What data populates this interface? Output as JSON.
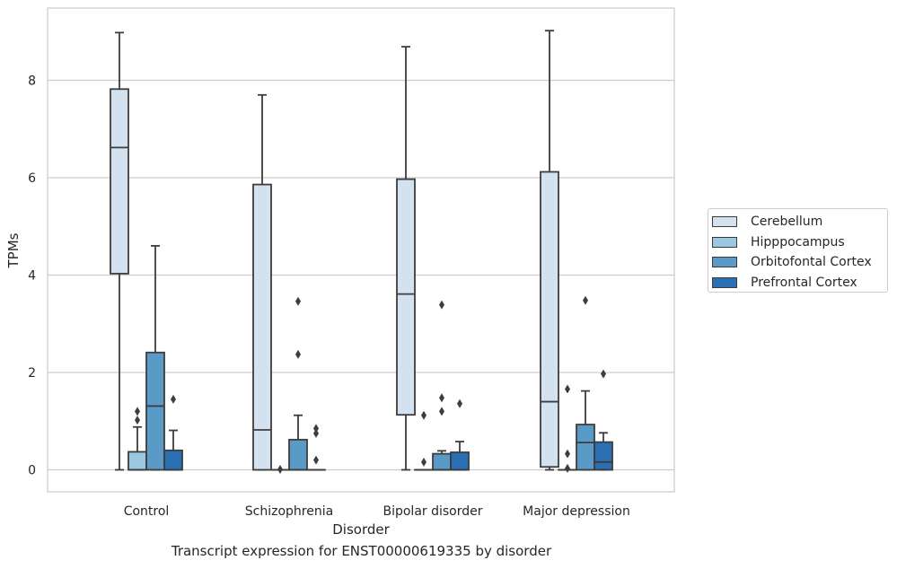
{
  "chart_data": {
    "type": "box",
    "title": "",
    "caption": "Transcript expression for ENST00000619335 by disorder",
    "xlabel": "Disorder",
    "ylabel": "TPMs",
    "ylim": [
      -0.42,
      9.5
    ],
    "yticks": [
      0,
      2,
      4,
      6,
      8
    ],
    "grid": "horizontal",
    "legend_placement": "right",
    "categories": [
      "Control",
      "Schizophrenia",
      "Bipolar disorder",
      "Major depression"
    ],
    "series": [
      {
        "name": "Cerebellum",
        "color": "#d4e2f0",
        "boxes": [
          {
            "whisker_low": 0,
            "q1": 4.03,
            "median": 6.62,
            "q3": 7.82,
            "whisker_high": 8.98,
            "outliers": []
          },
          {
            "whisker_low": 0,
            "q1": 0,
            "median": 0.82,
            "q3": 5.86,
            "whisker_high": 7.7,
            "outliers": []
          },
          {
            "whisker_low": 0,
            "q1": 1.13,
            "median": 3.61,
            "q3": 5.97,
            "whisker_high": 8.69,
            "outliers": []
          },
          {
            "whisker_low": 0,
            "q1": 0.06,
            "median": 1.4,
            "q3": 6.12,
            "whisker_high": 9.02,
            "outliers": []
          }
        ]
      },
      {
        "name": "Hipppocampus",
        "color": "#9ac8e0",
        "boxes": [
          {
            "whisker_low": 0,
            "q1": 0,
            "median": 0,
            "q3": 0.37,
            "whisker_high": 0.88,
            "outliers": [
              1.02,
              1.2
            ]
          },
          {
            "whisker_low": 0,
            "q1": 0,
            "median": 0,
            "q3": 0,
            "whisker_high": 0,
            "outliers": [
              0.01
            ]
          },
          {
            "whisker_low": 0,
            "q1": 0,
            "median": 0,
            "q3": 0,
            "whisker_high": 0,
            "outliers": [
              0.16,
              1.12
            ]
          },
          {
            "whisker_low": 0,
            "q1": 0,
            "median": 0,
            "q3": 0,
            "whisker_high": 0,
            "outliers": [
              0.03,
              0.33,
              1.66
            ]
          }
        ]
      },
      {
        "name": "Orbitofontal Cortex",
        "color": "#5a9ac6",
        "boxes": [
          {
            "whisker_low": 0,
            "q1": 0,
            "median": 1.31,
            "q3": 2.41,
            "whisker_high": 4.6,
            "outliers": []
          },
          {
            "whisker_low": 0,
            "q1": 0,
            "median": 0,
            "q3": 0.62,
            "whisker_high": 1.12,
            "outliers": [
              2.37,
              3.46
            ]
          },
          {
            "whisker_low": 0,
            "q1": 0,
            "median": 0,
            "q3": 0.33,
            "whisker_high": 0.39,
            "outliers": [
              1.2,
              1.48,
              3.39
            ]
          },
          {
            "whisker_low": 0,
            "q1": 0,
            "median": 0.56,
            "q3": 0.93,
            "whisker_high": 1.62,
            "outliers": [
              3.48
            ]
          }
        ]
      },
      {
        "name": "Prefrontal Cortex",
        "color": "#2a6fb2",
        "boxes": [
          {
            "whisker_low": 0,
            "q1": 0,
            "median": 0,
            "q3": 0.4,
            "whisker_high": 0.81,
            "outliers": [
              1.45
            ]
          },
          {
            "whisker_low": 0,
            "q1": 0,
            "median": 0,
            "q3": 0,
            "whisker_high": 0,
            "outliers": [
              0.2,
              0.75,
              0.85
            ]
          },
          {
            "whisker_low": 0,
            "q1": 0,
            "median": 0,
            "q3": 0.36,
            "whisker_high": 0.58,
            "outliers": [
              1.36
            ]
          },
          {
            "whisker_low": 0,
            "q1": 0,
            "median": 0.16,
            "q3": 0.57,
            "whisker_high": 0.76,
            "outliers": [
              1.97
            ]
          }
        ]
      }
    ]
  }
}
